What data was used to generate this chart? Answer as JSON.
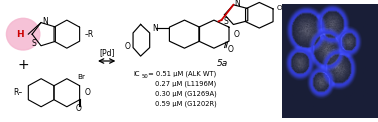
{
  "background_color": "#ffffff",
  "figsize": [
    3.78,
    1.22
  ],
  "dpi": 100,
  "pink_circle_color": "#f5b8d0",
  "pink_circle_alpha": 0.85,
  "H_color": "#cc0000",
  "arrow_label": "[Pd]",
  "compound_label": "5a",
  "red_bond_color": "#cc0000",
  "ic50_line1": "IC",
  "ic50_line1b": "50",
  "ic50_line1c": " = 0.51 μM (ALK WT)",
  "ic50_line2": "0.27 μM (L1196M)",
  "ic50_line3": "0.30 μM (G1269A)",
  "ic50_line4": "0.59 μM (G1202R)",
  "cell_centers_y": [
    28,
    22,
    48,
    62,
    68,
    40,
    82
  ],
  "cell_centers_x": [
    30,
    62,
    55,
    22,
    70,
    82,
    48
  ],
  "cell_radii": [
    20,
    16,
    18,
    13,
    17,
    11,
    12
  ],
  "bg_rgb": [
    25,
    30,
    55
  ],
  "cell_interior_rgb": [
    110,
    110,
    125
  ],
  "cell_edge_rgb": [
    50,
    60,
    220
  ],
  "cell_edge_width": 4
}
